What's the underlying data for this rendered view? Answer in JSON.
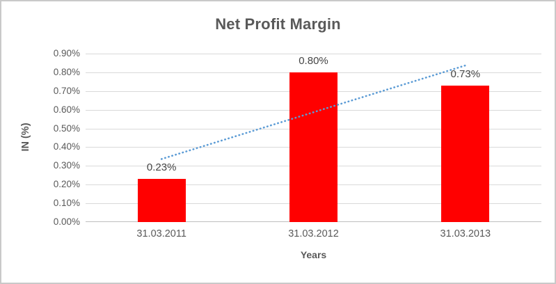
{
  "chart_data": {
    "type": "bar",
    "title": "Net Profit Margin",
    "xlabel": "Years",
    "ylabel": "IN (%)",
    "categories": [
      "31.03.2011",
      "31.03.2012",
      "31.03.2013"
    ],
    "values": [
      0.23,
      0.8,
      0.73
    ],
    "data_labels": [
      "0.23%",
      "0.80%",
      "0.73%"
    ],
    "y_ticks": [
      "0.90%",
      "0.80%",
      "0.70%",
      "0.60%",
      "0.50%",
      "0.40%",
      "0.30%",
      "0.20%",
      "0.10%",
      "0.00%"
    ],
    "ylim": [
      0,
      0.9
    ],
    "grid": true,
    "legend": "none",
    "bar_color": "#ff0000",
    "gridline_color": "#d9d9d9",
    "axis_line_color": "#bfbfbf",
    "text_color": "#595959",
    "data_label_color": "#444444",
    "frame_border_color": "#c9c9c9",
    "trendline": {
      "type": "linear",
      "style": "dotted",
      "color": "#5b9bd5"
    }
  }
}
